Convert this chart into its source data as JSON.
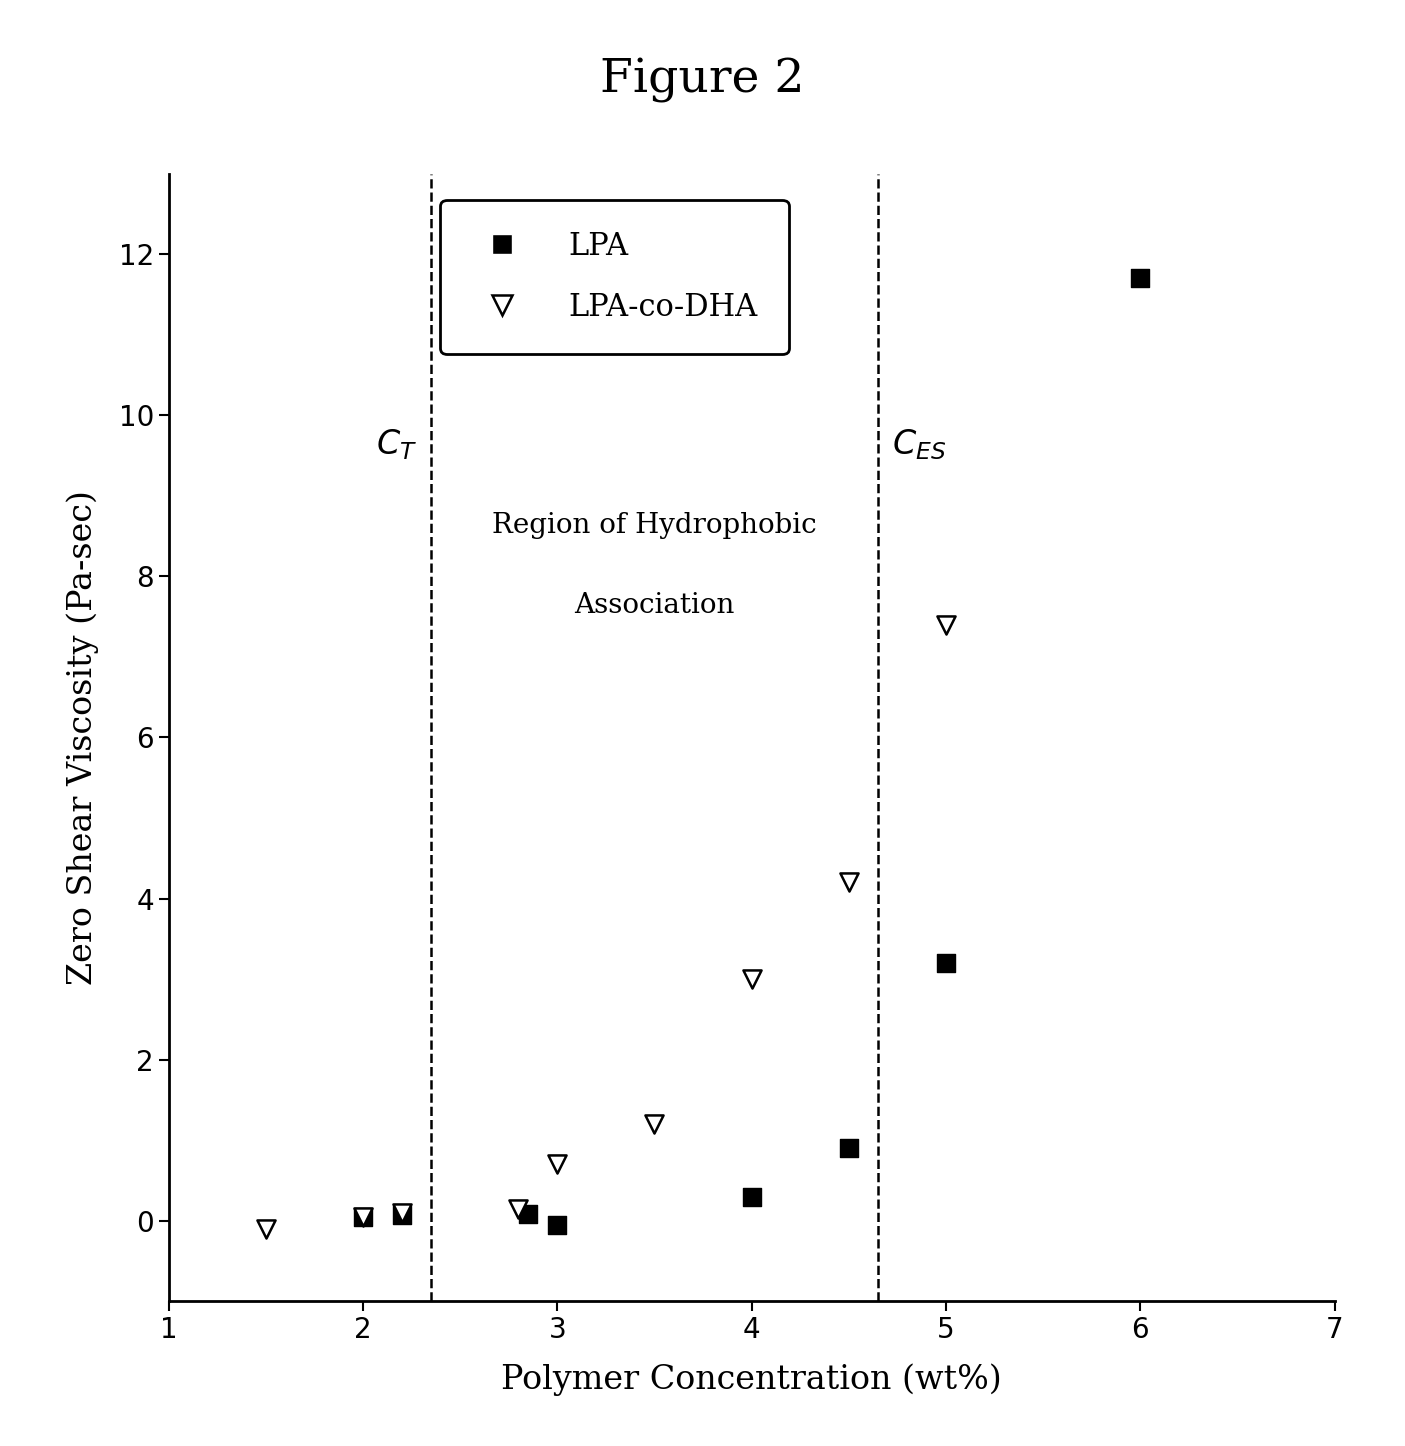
{
  "title": "Figure 2",
  "xlabel": "Polymer Concentration (wt%)",
  "ylabel": "Zero Shear Viscosity (Pa-sec)",
  "xlim": [
    1,
    7
  ],
  "ylim": [
    -1,
    13
  ],
  "xticks": [
    1,
    2,
    3,
    4,
    5,
    6,
    7
  ],
  "yticks": [
    0,
    2,
    4,
    6,
    8,
    10,
    12
  ],
  "lpa_x": [
    2.0,
    2.2,
    2.85,
    3.0,
    4.0,
    4.5,
    5.0,
    6.0
  ],
  "lpa_y": [
    0.05,
    0.07,
    0.08,
    -0.05,
    0.3,
    0.9,
    3.2,
    11.7
  ],
  "lpa_dha_x": [
    1.5,
    2.0,
    2.2,
    2.8,
    3.0,
    3.5,
    4.0,
    4.5,
    5.0
  ],
  "lpa_dha_y": [
    -0.1,
    0.05,
    0.1,
    0.15,
    0.7,
    1.2,
    3.0,
    4.2,
    7.4
  ],
  "ct_x": 2.35,
  "ces_x": 4.65,
  "region_label_line1": "Region of Hydrophobic",
  "region_label_line2": "Association",
  "legend_lpa": "LPA",
  "legend_lpa_dha": "LPA-co-DHA",
  "marker_color": "black",
  "title_fontsize": 34,
  "axis_label_fontsize": 24,
  "tick_fontsize": 20,
  "legend_fontsize": 22,
  "annotation_fontsize": 22,
  "region_fontsize": 20
}
